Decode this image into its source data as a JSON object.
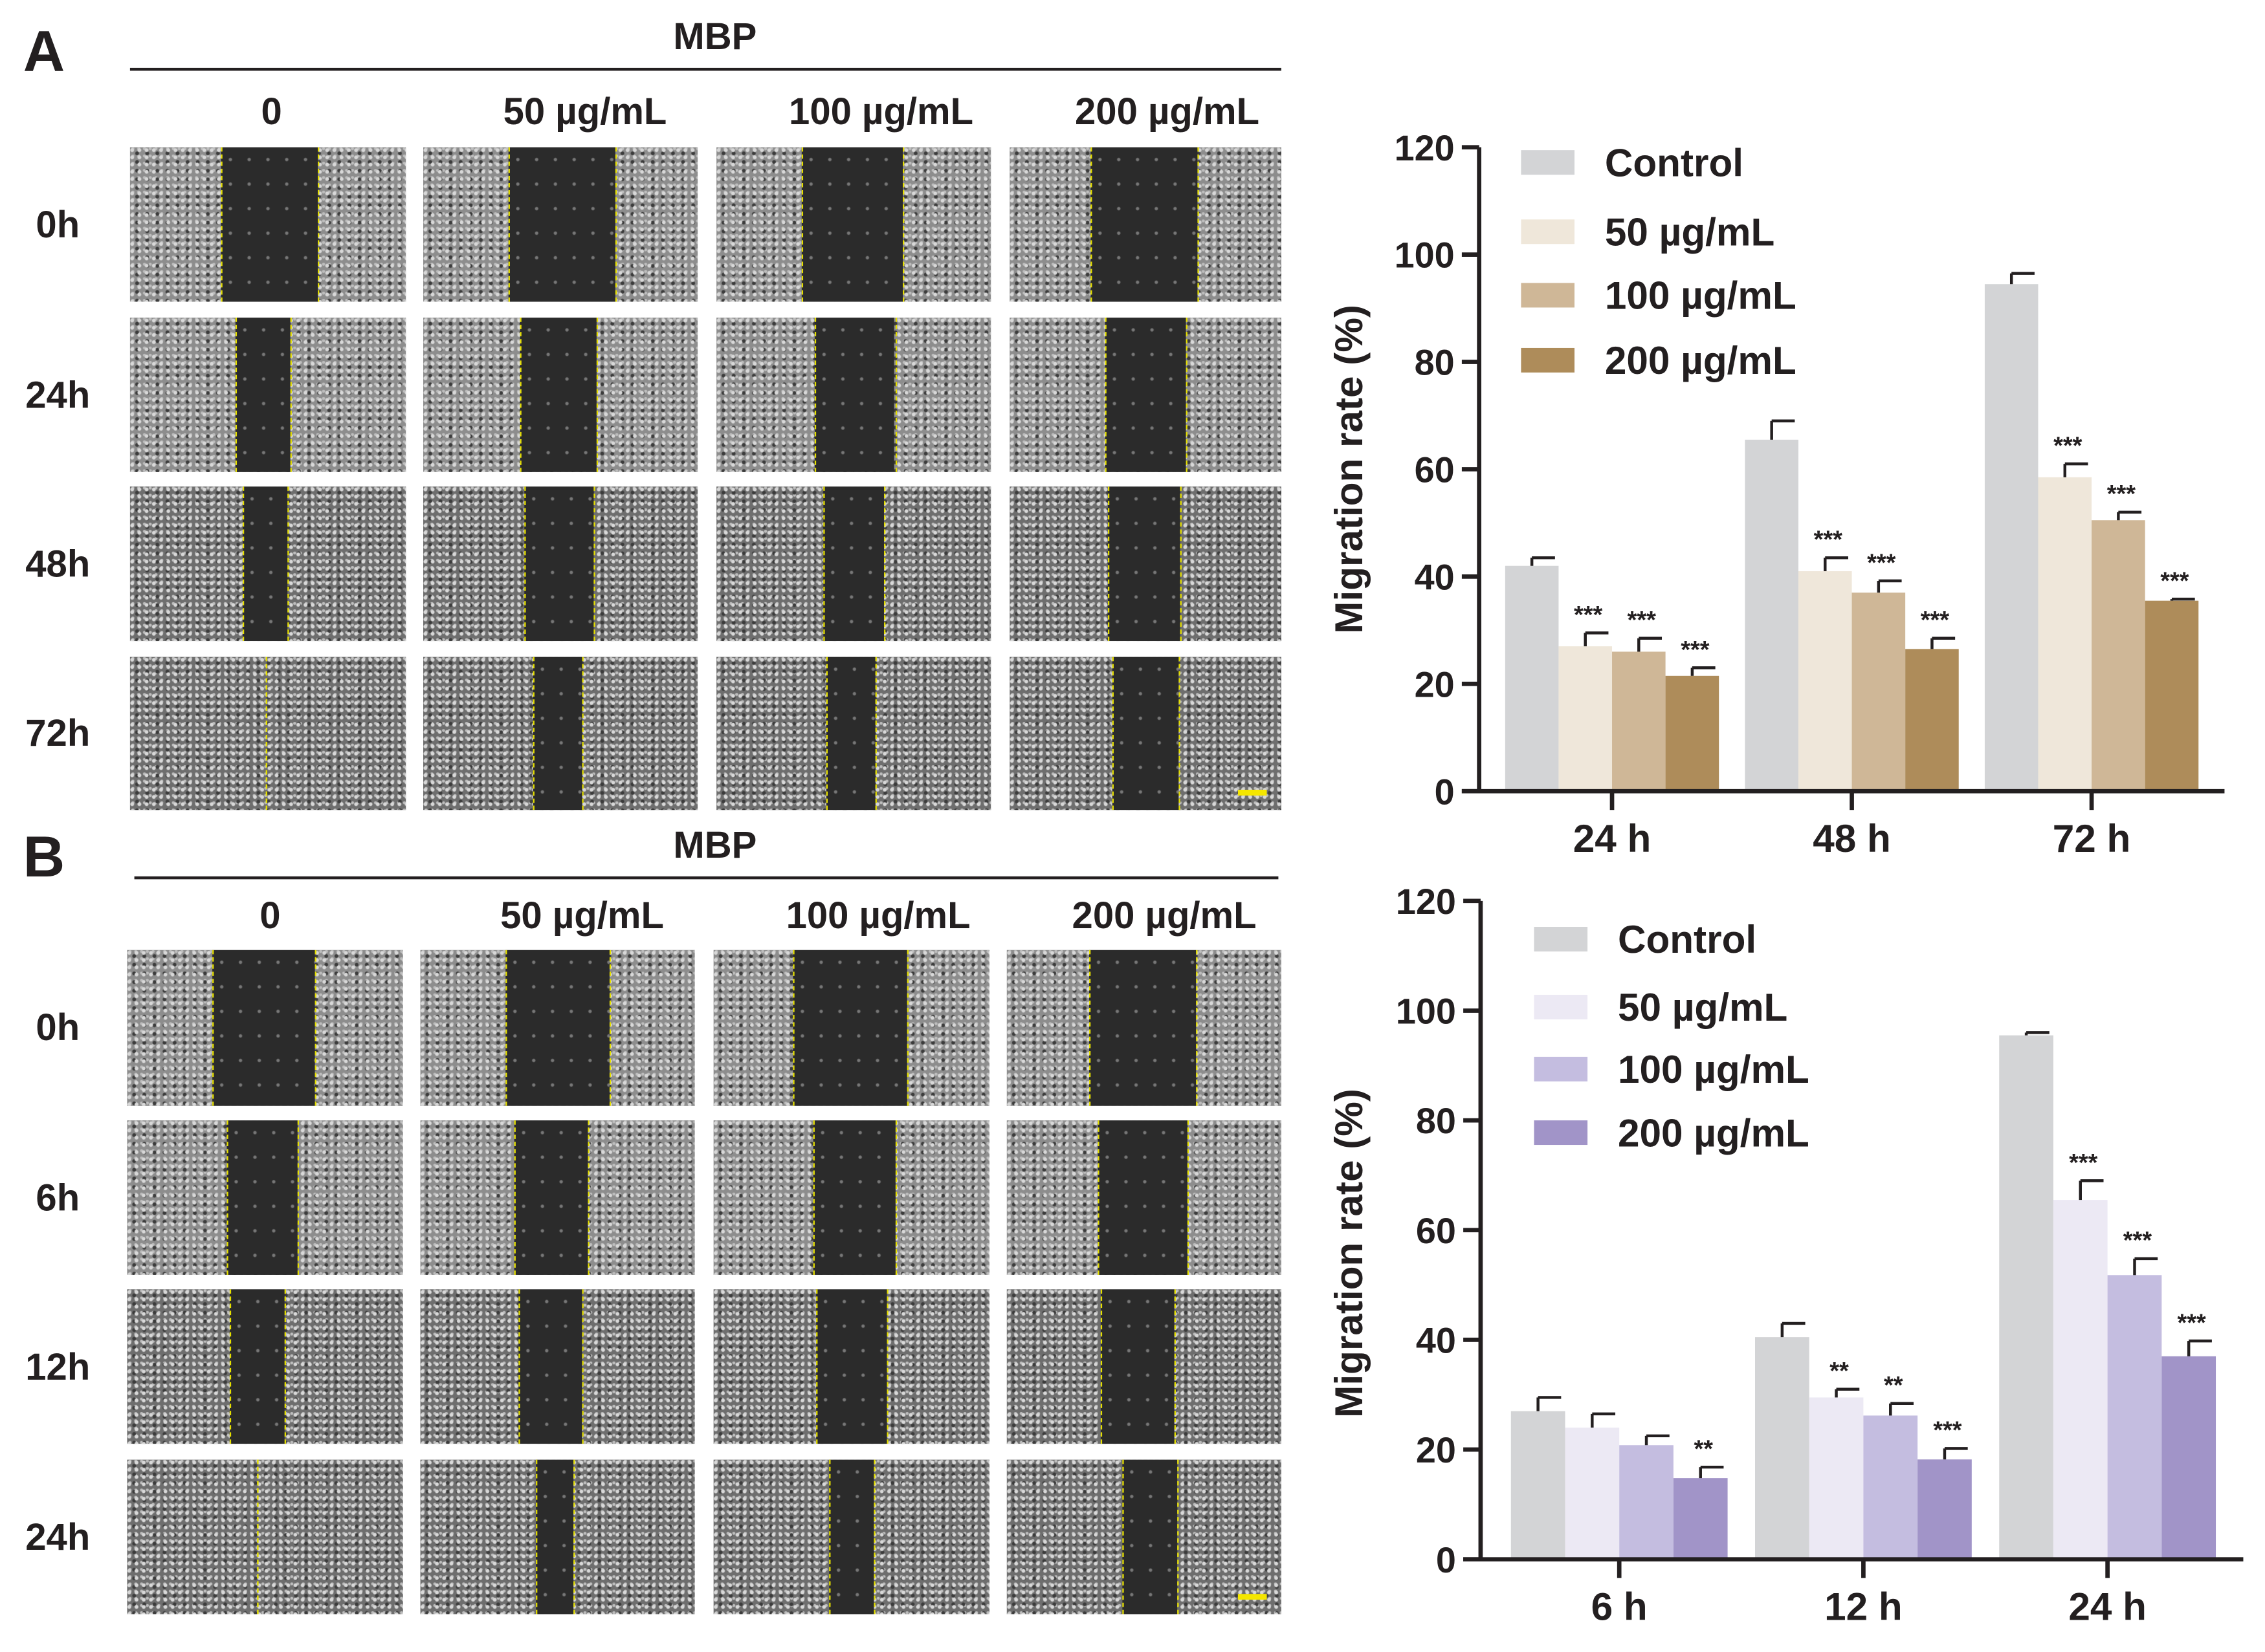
{
  "panels": [
    {
      "letter": "A",
      "treatment_label": "MBP",
      "columns": [
        "0",
        "50 µg/mL",
        "100 µg/mL",
        "200 µg/mL"
      ],
      "rows": [
        "0h",
        "24h",
        "48h",
        "72h"
      ]
    },
    {
      "letter": "B",
      "treatment_label": "MBP",
      "columns": [
        "0",
        "50 µg/mL",
        "100 µg/mL",
        "200 µg/mL"
      ],
      "rows": [
        "0h",
        "6h",
        "12h",
        "24h"
      ]
    }
  ],
  "chart_data": [
    {
      "type": "bar",
      "panel": "A",
      "title": "",
      "xlabel": "",
      "ylabel": "Migration rate (%)",
      "ylim": [
        0,
        120
      ],
      "yticks": [
        "0",
        "20",
        "40",
        "60",
        "80",
        "100",
        "120"
      ],
      "categories": [
        "24 h",
        "48 h",
        "72 h"
      ],
      "legend_position": "top-left",
      "series": [
        {
          "name": "Control",
          "color": "#d3d4d6",
          "values": [
            42,
            65.5,
            94.5
          ],
          "errors": [
            1.5,
            3.5,
            2
          ],
          "significance": [
            "",
            "",
            ""
          ]
        },
        {
          "name": "50 µg/mL",
          "color": "#efe7da",
          "values": [
            27,
            41,
            58.5
          ],
          "errors": [
            2.5,
            2.5,
            2.5
          ],
          "significance": [
            "***",
            "***",
            "***"
          ]
        },
        {
          "name": "100 µg/mL",
          "color": "#cfb797",
          "values": [
            26,
            37,
            50.5
          ],
          "errors": [
            2.5,
            2.2,
            1.5
          ],
          "significance": [
            "***",
            "***",
            "***"
          ]
        },
        {
          "name": "200 µg/mL",
          "color": "#ae8c5a",
          "values": [
            21.5,
            26.5,
            35.5
          ],
          "errors": [
            1.5,
            2,
            0.3
          ],
          "significance": [
            "***",
            "***",
            "***"
          ]
        }
      ]
    },
    {
      "type": "bar",
      "panel": "B",
      "title": "",
      "xlabel": "",
      "ylabel": "Migration rate (%)",
      "ylim": [
        0,
        120
      ],
      "yticks": [
        "0",
        "20",
        "40",
        "60",
        "80",
        "100",
        "120"
      ],
      "categories": [
        "6 h",
        "12 h",
        "24 h"
      ],
      "legend_position": "top-left",
      "series": [
        {
          "name": "Control",
          "color": "#d3d4d6",
          "values": [
            27,
            40.5,
            95.5
          ],
          "errors": [
            2.5,
            2.5,
            0.5
          ],
          "significance": [
            "",
            "",
            ""
          ]
        },
        {
          "name": "50 µg/mL",
          "color": "#ece9f4",
          "values": [
            24,
            29.5,
            65.5
          ],
          "errors": [
            2.5,
            1.5,
            3.5
          ],
          "significance": [
            "",
            "**",
            "***"
          ]
        },
        {
          "name": "100 µg/mL",
          "color": "#c4bde0",
          "values": [
            20.8,
            26.2,
            51.8
          ],
          "errors": [
            1.7,
            2.2,
            3
          ],
          "significance": [
            "",
            "**",
            "***"
          ]
        },
        {
          "name": "200 µg/mL",
          "color": "#a194c8",
          "values": [
            14.8,
            18.2,
            37
          ],
          "errors": [
            2,
            2,
            2.8
          ],
          "significance": [
            "**",
            "***",
            "***"
          ]
        }
      ]
    }
  ]
}
